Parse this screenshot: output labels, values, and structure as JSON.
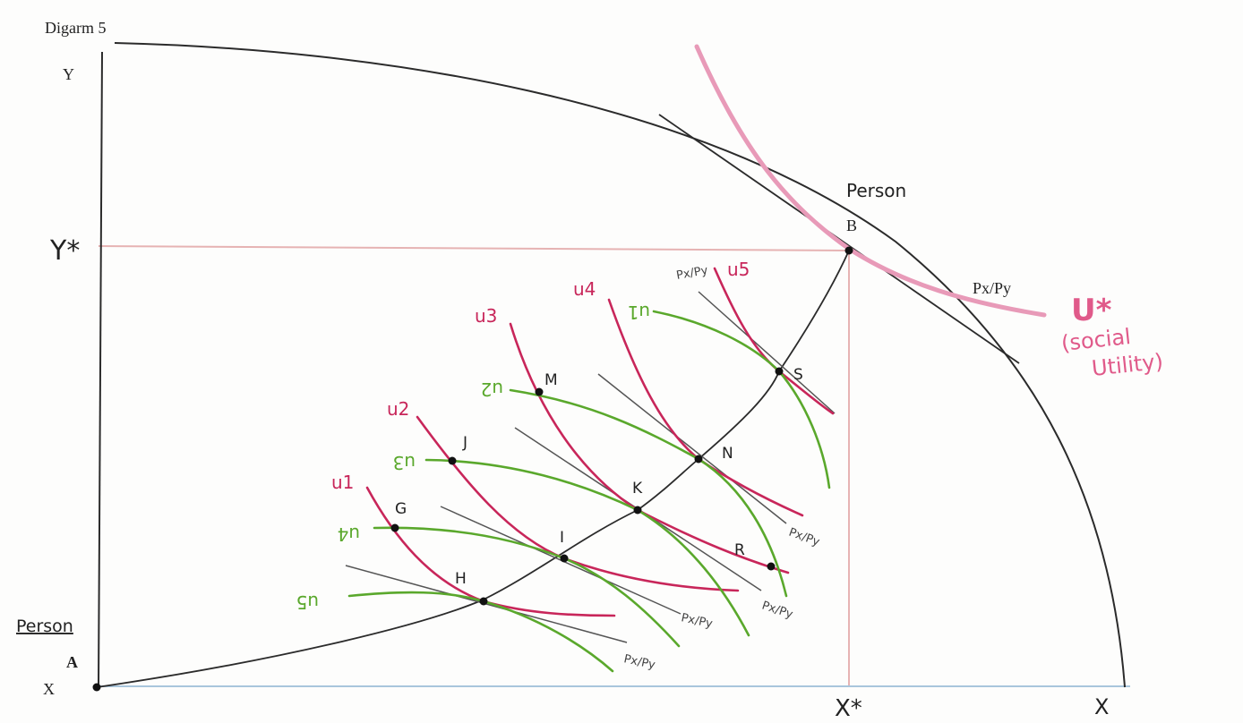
{
  "diagram": {
    "title": "Digarm 5",
    "axes": {
      "y_label": "Y",
      "x_label_origin": "X",
      "x_label_end": "X",
      "y_star": "Y*",
      "x_star": "X*"
    },
    "person_a": {
      "word": "Person",
      "letter": "A"
    },
    "person_b": {
      "word": "Person",
      "letter": "B"
    },
    "price_ratio": "Px/Py",
    "social_utility": {
      "symbol": "U*",
      "caption_line1": "(social",
      "caption_line2": "Utility)"
    },
    "points": [
      "G",
      "H",
      "I",
      "J",
      "K",
      "M",
      "N",
      "R",
      "S"
    ],
    "red_curves": [
      "u1",
      "u2",
      "u3",
      "u4",
      "u5"
    ],
    "green_curves": [
      "u5",
      "u4",
      "u3",
      "u2",
      "u1"
    ],
    "tangent_labels": [
      "Px/Py",
      "Px/Py",
      "Px/Py",
      "Px/Py",
      "Px/Py"
    ],
    "colors": {
      "ink": "#2b2b2b",
      "red": "#c8265a",
      "green": "#5aa82c",
      "pink": "#e89ab8",
      "guide": "#e6b3b3",
      "base": "#a9c6dc"
    }
  }
}
